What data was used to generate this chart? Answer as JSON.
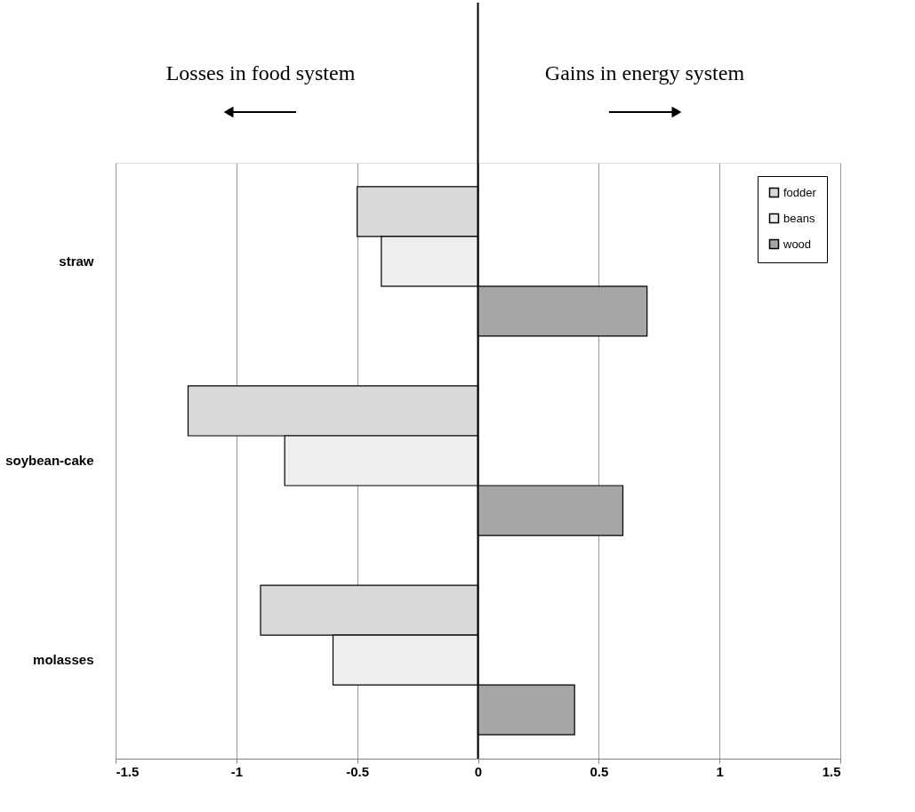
{
  "chart_data": {
    "type": "bar",
    "orientation": "horizontal",
    "categories": [
      "straw",
      "soybean-cake",
      "molasses"
    ],
    "series": [
      {
        "name": "fodder",
        "color": "#d9d9d9",
        "values": [
          -0.5,
          -1.2,
          -0.9
        ]
      },
      {
        "name": "beans",
        "color": "#eeeeee",
        "values": [
          -0.4,
          -0.8,
          -0.6
        ]
      },
      {
        "name": "wood",
        "color": "#a6a6a6",
        "values": [
          0.7,
          0.6,
          0.4
        ]
      }
    ],
    "xlim": [
      -1.5,
      1.5
    ],
    "xticks": [
      -1.5,
      -1,
      -0.5,
      0,
      0.5,
      1,
      1.5
    ],
    "grid": "x",
    "legend": "top right",
    "annotations": [
      "Losses in  food system",
      "Gains in energy system"
    ]
  }
}
